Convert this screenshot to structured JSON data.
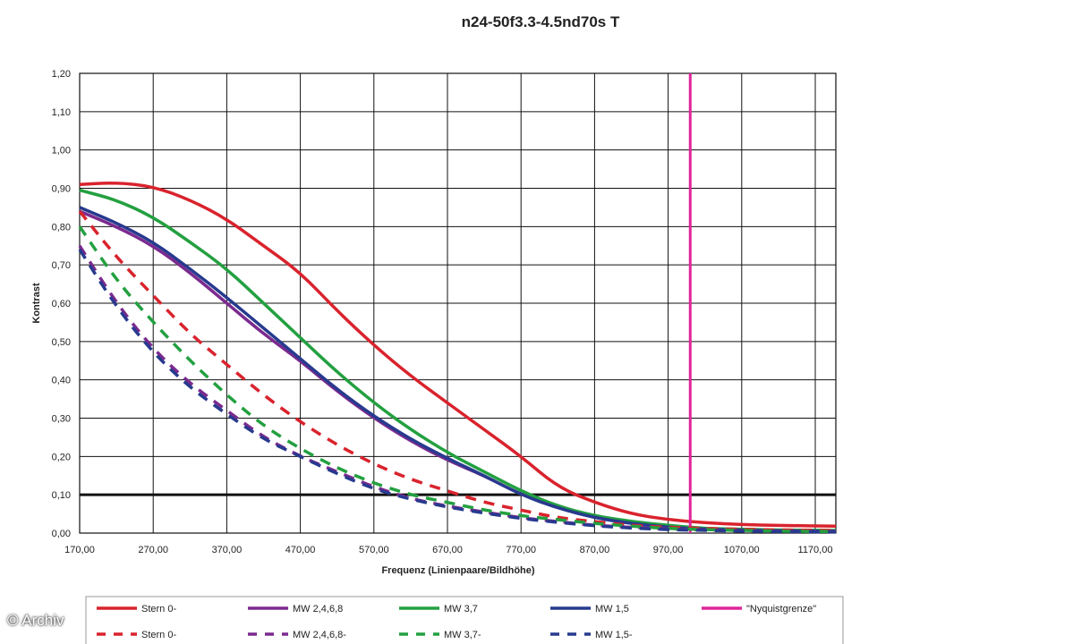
{
  "watermark": "© Archiv",
  "chart_data": {
    "type": "line",
    "title": "n24-50f3.3-4.5nd70s T",
    "xlabel": "Frequenz (Linienpaare/Bildhöhe)",
    "ylabel": "Kontrast",
    "xlim": [
      170,
      1200
    ],
    "ylim": [
      0,
      1.2
    ],
    "x_ticks": [
      "170,00",
      "270,00",
      "370,00",
      "470,00",
      "570,00",
      "670,00",
      "770,00",
      "870,00",
      "970,00",
      "1070,00",
      "1170,00"
    ],
    "y_ticks": [
      "0,00",
      "0,10",
      "0,20",
      "0,30",
      "0,40",
      "0,50",
      "0,60",
      "0,70",
      "0,80",
      "0,90",
      "1,00",
      "1,10",
      "1,20"
    ],
    "grid": true,
    "legend_position": "bottom",
    "reference_line_y": 0.1,
    "colors": {
      "red": "#d9232d",
      "purple": "#7b2a8f",
      "green": "#23a040",
      "blue": "#273a8e",
      "pink": "#e0259a",
      "black": "#111111"
    },
    "series": [
      {
        "name": "Stern 0-",
        "color": "#d9232d",
        "dash": false,
        "x": [
          170,
          220,
          270,
          320,
          370,
          420,
          470,
          520,
          570,
          620,
          670,
          720,
          770,
          820,
          870,
          920,
          970,
          1020,
          1070,
          1120,
          1200
        ],
        "y": [
          0.91,
          0.915,
          0.905,
          0.87,
          0.82,
          0.75,
          0.68,
          0.58,
          0.49,
          0.41,
          0.34,
          0.27,
          0.2,
          0.12,
          0.08,
          0.05,
          0.035,
          0.027,
          0.022,
          0.02,
          0.018
        ]
      },
      {
        "name": "MW 2,4,6,8",
        "color": "#7b2a8f",
        "dash": false,
        "x": [
          170,
          220,
          270,
          320,
          370,
          420,
          470,
          520,
          570,
          620,
          670,
          720,
          770,
          820,
          870,
          920,
          970,
          1020,
          1070,
          1120,
          1200
        ],
        "y": [
          0.84,
          0.8,
          0.75,
          0.68,
          0.6,
          0.52,
          0.45,
          0.37,
          0.3,
          0.24,
          0.19,
          0.15,
          0.1,
          0.07,
          0.04,
          0.025,
          0.015,
          0.01,
          0.008,
          0.006,
          0.005
        ]
      },
      {
        "name": "MW 3,7",
        "color": "#23a040",
        "dash": false,
        "x": [
          170,
          220,
          270,
          320,
          370,
          420,
          470,
          520,
          570,
          620,
          670,
          720,
          770,
          820,
          870,
          920,
          970,
          1020,
          1070,
          1120,
          1200
        ],
        "y": [
          0.895,
          0.87,
          0.825,
          0.76,
          0.69,
          0.6,
          0.51,
          0.42,
          0.34,
          0.27,
          0.21,
          0.16,
          0.11,
          0.07,
          0.045,
          0.03,
          0.02,
          0.012,
          0.01,
          0.008,
          0.007
        ]
      },
      {
        "name": "MW 1,5",
        "color": "#273a8e",
        "dash": false,
        "x": [
          170,
          220,
          270,
          320,
          370,
          420,
          470,
          520,
          570,
          620,
          670,
          720,
          770,
          820,
          870,
          920,
          970,
          1020,
          1070,
          1120,
          1200
        ],
        "y": [
          0.85,
          0.81,
          0.76,
          0.69,
          0.615,
          0.535,
          0.455,
          0.375,
          0.305,
          0.245,
          0.195,
          0.15,
          0.1,
          0.065,
          0.04,
          0.025,
          0.015,
          0.01,
          0.008,
          0.006,
          0.005
        ]
      },
      {
        "name": "\"Nyquistgrenze\"",
        "color": "#e0259a",
        "dash": false,
        "vertical_x": 1000
      },
      {
        "name": "Stern 0-",
        "color": "#d9232d",
        "dash": true,
        "x": [
          170,
          220,
          270,
          320,
          370,
          420,
          470,
          520,
          570,
          620,
          670,
          720,
          770,
          820,
          870,
          920,
          970,
          1020,
          1070,
          1120,
          1200
        ],
        "y": [
          0.84,
          0.72,
          0.62,
          0.52,
          0.44,
          0.36,
          0.29,
          0.23,
          0.18,
          0.14,
          0.11,
          0.08,
          0.06,
          0.04,
          0.03,
          0.02,
          0.015,
          0.012,
          0.01,
          0.008,
          0.007
        ]
      },
      {
        "name": "MW 2,4,6,8-",
        "color": "#7b2a8f",
        "dash": true,
        "x": [
          170,
          220,
          270,
          320,
          370,
          420,
          470,
          520,
          570,
          620,
          670,
          720,
          770,
          820,
          870,
          920,
          970,
          1020,
          1070,
          1120,
          1200
        ],
        "y": [
          0.75,
          0.6,
          0.48,
          0.39,
          0.32,
          0.25,
          0.2,
          0.16,
          0.12,
          0.09,
          0.07,
          0.055,
          0.04,
          0.03,
          0.02,
          0.015,
          0.01,
          0.008,
          0.006,
          0.005,
          0.004
        ]
      },
      {
        "name": "MW 3,7-",
        "color": "#23a040",
        "dash": true,
        "x": [
          170,
          220,
          270,
          320,
          370,
          420,
          470,
          520,
          570,
          620,
          670,
          720,
          770,
          820,
          870,
          920,
          970,
          1020,
          1070,
          1120,
          1200
        ],
        "y": [
          0.8,
          0.66,
          0.55,
          0.45,
          0.36,
          0.28,
          0.22,
          0.17,
          0.13,
          0.1,
          0.08,
          0.06,
          0.045,
          0.035,
          0.025,
          0.018,
          0.012,
          0.009,
          0.007,
          0.005,
          0.004
        ]
      },
      {
        "name": "MW 1,5-",
        "color": "#273a8e",
        "dash": true,
        "x": [
          170,
          220,
          270,
          320,
          370,
          420,
          470,
          520,
          570,
          620,
          670,
          720,
          770,
          820,
          870,
          920,
          970,
          1020,
          1070,
          1120,
          1200
        ],
        "y": [
          0.74,
          0.59,
          0.47,
          0.38,
          0.31,
          0.245,
          0.2,
          0.155,
          0.115,
          0.088,
          0.068,
          0.052,
          0.038,
          0.028,
          0.019,
          0.013,
          0.009,
          0.007,
          0.005,
          0.004,
          0.003
        ]
      }
    ]
  }
}
